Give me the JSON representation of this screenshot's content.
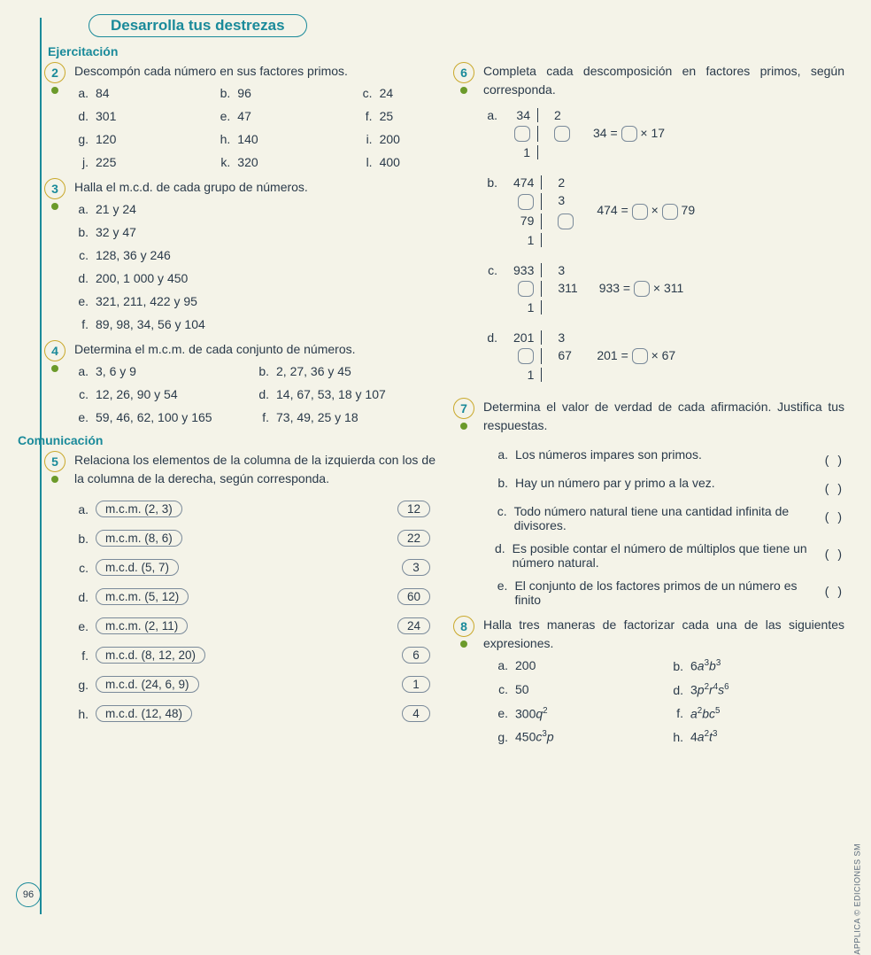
{
  "colors": {
    "teal": "#1a8a9a",
    "gold": "#c9a82a",
    "green_dot": "#6b9a2a",
    "text": "#2a3a4a",
    "bg": "#f4f3e8",
    "border_gray": "#7a8a9a"
  },
  "header": {
    "title": "Desarrolla tus destrezas"
  },
  "section_ejercitacion": "Ejercitación",
  "section_comunicacion": "Comunicación",
  "page_number": "96",
  "copyright": "APPLICA © EDICIONES SM",
  "ex2": {
    "num": "2",
    "text": "Descompón cada número en sus factores primos.",
    "items": [
      {
        "l": "a.",
        "v": "84"
      },
      {
        "l": "b.",
        "v": "96"
      },
      {
        "l": "c.",
        "v": "24"
      },
      {
        "l": "d.",
        "v": "301"
      },
      {
        "l": "e.",
        "v": "47"
      },
      {
        "l": "f.",
        "v": "25"
      },
      {
        "l": "g.",
        "v": "120"
      },
      {
        "l": "h.",
        "v": "140"
      },
      {
        "l": "i.",
        "v": "200"
      },
      {
        "l": "j.",
        "v": "225"
      },
      {
        "l": "k.",
        "v": "320"
      },
      {
        "l": "l.",
        "v": "400"
      }
    ]
  },
  "ex3": {
    "num": "3",
    "text": "Halla el m.c.d. de cada grupo de números.",
    "items": [
      {
        "l": "a.",
        "v": "21 y 24"
      },
      {
        "l": "b.",
        "v": "32 y 47"
      },
      {
        "l": "c.",
        "v": "128, 36 y 246"
      },
      {
        "l": "d.",
        "v": "200, 1 000 y 450"
      },
      {
        "l": "e.",
        "v": "321, 211, 422 y 95"
      },
      {
        "l": "f.",
        "v": "89, 98, 34, 56 y 104"
      }
    ]
  },
  "ex4": {
    "num": "4",
    "text": "Determina el m.c.m. de cada conjunto de números.",
    "items": [
      {
        "l": "a.",
        "v": "3, 6 y 9"
      },
      {
        "l": "b.",
        "v": "2, 27, 36 y 45"
      },
      {
        "l": "c.",
        "v": "12, 26, 90 y 54"
      },
      {
        "l": "d.",
        "v": "14, 67, 53, 18 y 107"
      },
      {
        "l": "e.",
        "v": "59, 46, 62, 100 y 165"
      },
      {
        "l": "f.",
        "v": "73, 49, 25 y 18"
      }
    ]
  },
  "ex5": {
    "num": "5",
    "text": "Relaciona los elementos de la columna de la izquierda con los de la columna de la derecha, según corresponda.",
    "rows": [
      {
        "l": "a.",
        "left": "m.c.m. (2, 3)",
        "right": "12"
      },
      {
        "l": "b.",
        "left": "m.c.m. (8, 6)",
        "right": "22"
      },
      {
        "l": "c.",
        "left": "m.c.d. (5, 7)",
        "right": "3"
      },
      {
        "l": "d.",
        "left": "m.c.m. (5, 12)",
        "right": "60"
      },
      {
        "l": "e.",
        "left": "m.c.m. (2, 11)",
        "right": "24"
      },
      {
        "l": "f.",
        "left": "m.c.d. (8, 12, 20)",
        "right": "6"
      },
      {
        "l": "g.",
        "left": "m.c.d. (24, 6, 9)",
        "right": "1"
      },
      {
        "l": "h.",
        "left": "m.c.d. (12, 48)",
        "right": "4"
      }
    ]
  },
  "ex6": {
    "num": "6",
    "text": "Completa cada descomposición en factores primos, según corresponda.",
    "parts": [
      {
        "l": "a.",
        "left": [
          "34",
          "▢",
          "1"
        ],
        "right": [
          "2",
          "▢",
          ""
        ],
        "eq_pre": "34 = ",
        "eq_post": " × 17",
        "blanks": 1
      },
      {
        "l": "b.",
        "left": [
          "474",
          "▢",
          "79",
          "1"
        ],
        "right": [
          "2",
          "3",
          "▢",
          ""
        ],
        "eq_pre": "474 = ",
        "eq_mid": " × ",
        "eq_post": " 79",
        "blanks": 2
      },
      {
        "l": "c.",
        "left": [
          "933",
          "▢",
          "1"
        ],
        "right": [
          "3",
          "311",
          ""
        ],
        "eq_pre": "933 = ",
        "eq_post": " × 311",
        "blanks": 1
      },
      {
        "l": "d.",
        "left": [
          "201",
          "▢",
          "1"
        ],
        "right": [
          "3",
          "67",
          ""
        ],
        "eq_pre": "201 = ",
        "eq_post": " × 67",
        "blanks": 1
      }
    ]
  },
  "ex7": {
    "num": "7",
    "text": "Determina el valor de verdad de cada afirmación. Justifica tus respuestas.",
    "items": [
      {
        "l": "a.",
        "v": "Los números impares son primos."
      },
      {
        "l": "b.",
        "v": "Hay un número par y primo a la vez."
      },
      {
        "l": "c.",
        "v": "Todo número natural tiene una cantidad infinita de divisores."
      },
      {
        "l": "d.",
        "v": "Es posible contar el número de múltiplos que tiene un número natural."
      },
      {
        "l": "e.",
        "v": "El conjunto de los factores primos de un número es finito"
      }
    ],
    "paren": "(    )"
  },
  "ex8": {
    "num": "8",
    "text": "Halla tres maneras de factorizar cada una de las siguientes expresiones.",
    "items": [
      {
        "l": "a.",
        "html": "200"
      },
      {
        "l": "b.",
        "html": "6<i>a</i><sup>3</sup><i>b</i><sup>3</sup>"
      },
      {
        "l": "c.",
        "html": "50"
      },
      {
        "l": "d.",
        "html": "3<i>p</i><sup>2</sup><i>r</i><sup>4</sup><i>s</i><sup>6</sup>"
      },
      {
        "l": "e.",
        "html": "300<i>q</i><sup>2</sup>"
      },
      {
        "l": "f.",
        "html": "<i>a</i><sup>2</sup><i>bc</i><sup>5</sup>"
      },
      {
        "l": "g.",
        "html": "450<i>c</i><sup>3</sup><i>p</i>"
      },
      {
        "l": "h.",
        "html": "4<i>a</i><sup>2</sup><i>t</i><sup>3</sup>"
      }
    ]
  }
}
